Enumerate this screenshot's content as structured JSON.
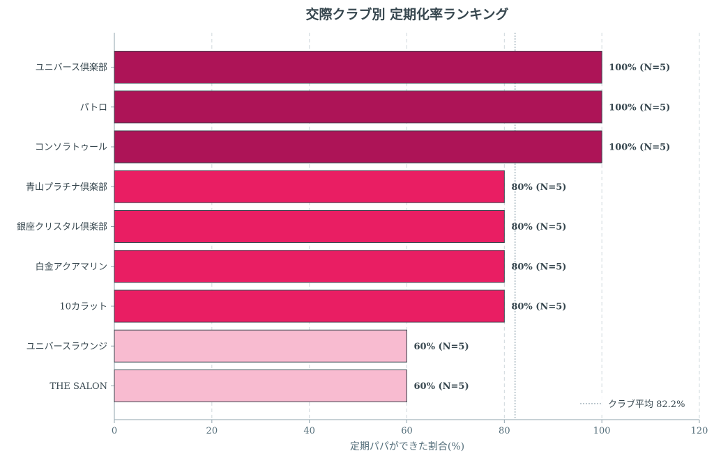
{
  "chart_data": {
    "type": "bar",
    "orientation": "horizontal",
    "title": "交際クラブ別 定期化率ランキング",
    "xlabel": "定期パパができた割合(%)",
    "ylabel": "",
    "xlim": [
      0,
      120
    ],
    "xticks": [
      "0",
      "20",
      "40",
      "60",
      "80",
      "100",
      "120"
    ],
    "grid": "vertical-dashed",
    "categories": [
      "ユニバース倶楽部",
      "パトロ",
      "コンソラトゥール",
      "青山プラチナ倶楽部",
      "銀座クリスタル倶楽部",
      "白金アクアマリン",
      "10カラット",
      "ユニバースラウンジ",
      "THE SALON"
    ],
    "values": [
      100,
      100,
      100,
      80,
      80,
      80,
      80,
      60,
      60
    ],
    "data_labels": [
      "100% (N=5)",
      "100% (N=5)",
      "100% (N=5)",
      "80% (N=5)",
      "80% (N=5)",
      "80% (N=5)",
      "80% (N=5)",
      "60% (N=5)",
      "60% (N=5)"
    ],
    "bar_colors": [
      "#ad1457",
      "#ad1457",
      "#ad1457",
      "#e91e63",
      "#e91e63",
      "#e91e63",
      "#e91e63",
      "#f8bbd0",
      "#f8bbd0"
    ],
    "reference_line": {
      "value": 82.2,
      "label": "クラブ平均 82.2%",
      "style": "dotted",
      "color": "#90a4ae"
    },
    "legend_position": "bottom-right"
  }
}
